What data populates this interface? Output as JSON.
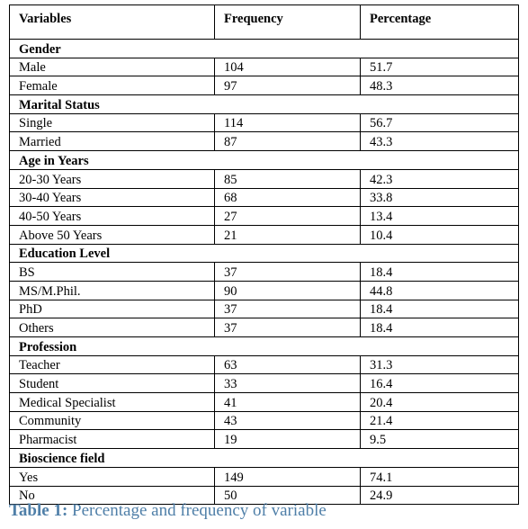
{
  "table": {
    "header": [
      "Variables",
      "Frequency",
      "Percentage"
    ],
    "groups": [
      {
        "title": "Gender",
        "rows": [
          [
            "Male",
            104,
            51.7
          ],
          [
            "Female",
            97,
            48.3
          ]
        ]
      },
      {
        "title": "Marital Status",
        "rows": [
          [
            "Single",
            114,
            56.7
          ],
          [
            "Married",
            87,
            43.3
          ]
        ]
      },
      {
        "title": "Age in Years",
        "rows": [
          [
            "20-30 Years",
            85,
            42.3
          ],
          [
            "30-40 Years",
            68,
            33.8
          ],
          [
            "40-50 Years",
            27,
            13.4
          ],
          [
            "Above 50 Years",
            21,
            10.4
          ]
        ]
      },
      {
        "title": "Education Level",
        "rows": [
          [
            "BS",
            37,
            18.4
          ],
          [
            "MS/M.Phil.",
            90,
            44.8
          ],
          [
            "PhD",
            37,
            18.4
          ],
          [
            "Others",
            37,
            18.4
          ]
        ]
      },
      {
        "title": "Profession",
        "rows": [
          [
            "Teacher",
            63,
            31.3
          ],
          [
            "Student",
            33,
            16.4
          ],
          [
            "Medical Specialist",
            41,
            20.4
          ],
          [
            "Community",
            43,
            21.4
          ],
          [
            "Pharmacist",
            19,
            9.5
          ]
        ]
      },
      {
        "title": "Bioscience field",
        "rows": [
          [
            "Yes",
            149,
            74.1
          ],
          [
            "No",
            50,
            24.9
          ]
        ]
      }
    ]
  },
  "caption": {
    "label": "Table 1:",
    "text": "Percentage and frequency of variable"
  }
}
